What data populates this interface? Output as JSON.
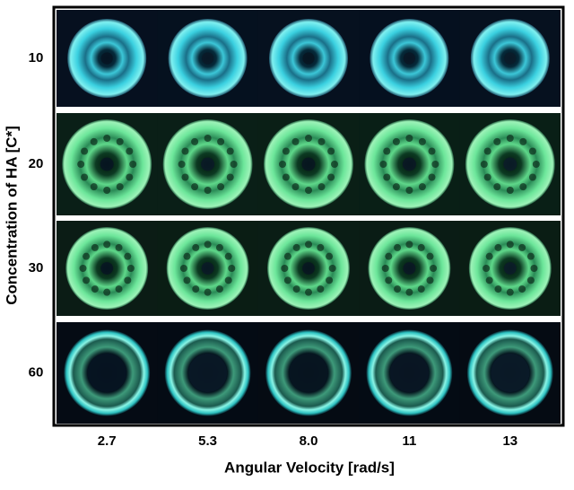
{
  "figure": {
    "y_axis_title": "Concentration of HA [C*]",
    "x_axis_title": "Angular Velocity [rad/s]",
    "row_labels": [
      "10",
      "20",
      "30",
      "60"
    ],
    "column_labels": [
      "2.7",
      "5.3",
      "8.0",
      "11",
      "13"
    ]
  }
}
